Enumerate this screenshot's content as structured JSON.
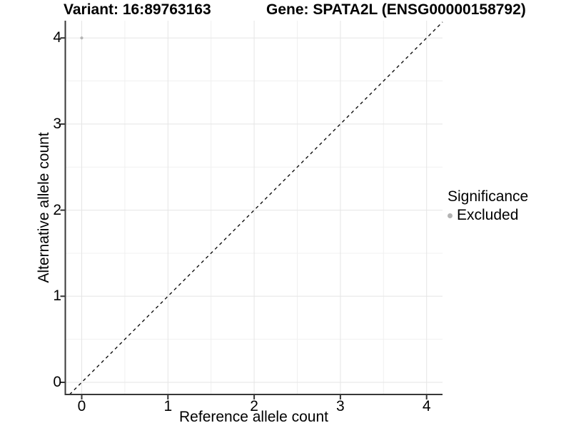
{
  "chart_data": {
    "type": "scatter",
    "titles": {
      "left": "Variant: 16:89763163",
      "right": "Gene: SPATA2L (ENSG00000158792)"
    },
    "xlabel": "Reference allele count",
    "ylabel": "Alternative allele count",
    "x_ticks": [
      0,
      1,
      2,
      3,
      4
    ],
    "y_ticks": [
      0,
      1,
      2,
      3,
      4
    ],
    "x_minor": [
      0.5,
      1.5,
      2.5,
      3.5
    ],
    "y_minor": [
      0.5,
      1.5,
      2.5,
      3.5
    ],
    "xlim": [
      -0.19,
      4.18
    ],
    "ylim": [
      -0.14,
      4.2
    ],
    "grid": "major+minor",
    "legend_position": "right",
    "reference_line": {
      "slope": 1,
      "intercept": 0,
      "style": "dashed"
    },
    "series": [
      {
        "name": "Excluded",
        "points": [
          {
            "x": 0,
            "y": 4
          }
        ]
      }
    ],
    "legend": {
      "title": "Significance",
      "items": [
        {
          "label": "Excluded"
        }
      ]
    }
  },
  "colors": {
    "background": "#ffffff",
    "point": "#b4b4b4",
    "grid_major": "#e5e5e5",
    "grid_minor": "#f0f0f0",
    "axis_line": "#383838",
    "tick_mark": "#333333",
    "reference_line": "#111111",
    "text": "#000000"
  }
}
